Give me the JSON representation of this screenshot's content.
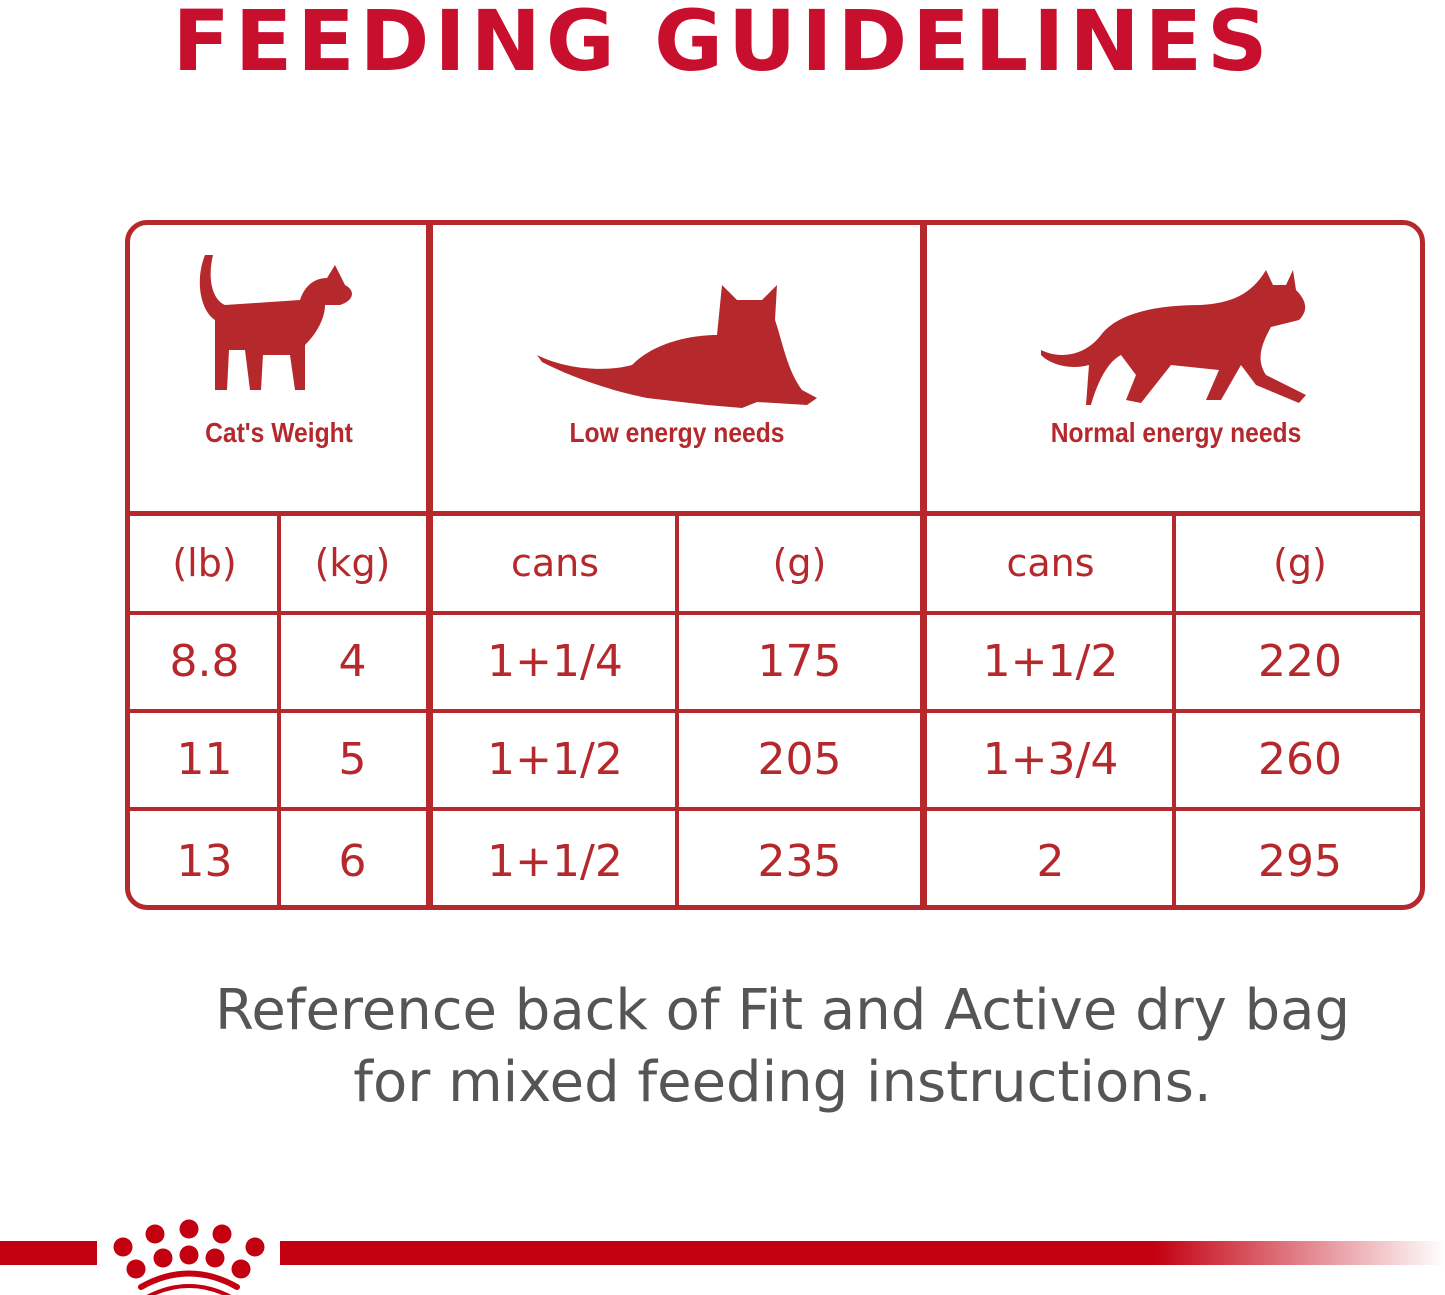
{
  "title": "FEEDING GUIDELINES",
  "table": {
    "headers": [
      {
        "label": "Cat's Weight",
        "icon": "sitting-cat-icon"
      },
      {
        "label": "Low energy needs",
        "icon": "lying-cat-icon"
      },
      {
        "label": "Normal energy needs",
        "icon": "walking-cat-icon"
      }
    ],
    "units": [
      "(lb)",
      "(kg)",
      "cans",
      "(g)",
      "cans",
      "(g)"
    ],
    "rows": [
      [
        "8.8",
        "4",
        "1+1/4",
        "175",
        "1+1/2",
        "220"
      ],
      [
        "11",
        "5",
        "1+1/2",
        "205",
        "1+3/4",
        "260"
      ],
      [
        "13",
        "6",
        "1+1/2",
        "235",
        "2",
        "295"
      ]
    ]
  },
  "note": {
    "line1": "Reference back of Fit and Active dry bag",
    "line2": "for mixed feeding instructions."
  },
  "logo": "Royal Canin crown logo",
  "colors": {
    "accent": "#c8102e",
    "table": "#b5292c",
    "note": "#555555"
  }
}
